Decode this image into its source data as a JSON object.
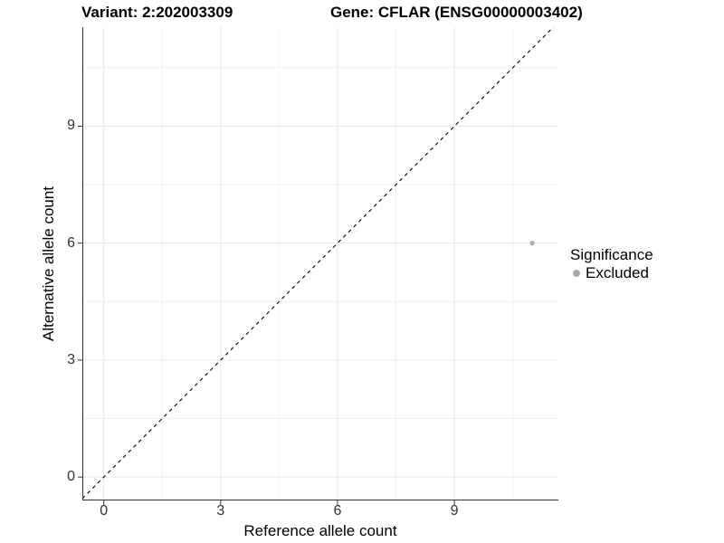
{
  "chart_data": {
    "type": "scatter",
    "title_left": "Variant: 2:202003309",
    "title_right": "Gene: CFLAR (ENSG00000003402)",
    "xlabel": "Reference allele count",
    "ylabel": "Alternative allele count",
    "x_ticks": [
      0,
      3,
      6,
      9
    ],
    "y_ticks": [
      0,
      3,
      6,
      9
    ],
    "x_minor_ticks": [
      1.5,
      4.5,
      7.5,
      10.5
    ],
    "y_minor_ticks": [
      1.5,
      4.5,
      7.5,
      10.5
    ],
    "xlim": [
      -0.55,
      11.67
    ],
    "ylim": [
      -0.6,
      11.54
    ],
    "grid": "major+minor",
    "legend_position": "right",
    "reference_line": {
      "slope": 1,
      "intercept": 0,
      "style": "dashed",
      "color": "#000000"
    },
    "series": [
      {
        "name": "Excluded",
        "color": "#b0b0b0",
        "points": [
          {
            "x": 11,
            "y": 6
          }
        ]
      }
    ],
    "legend": {
      "title": "Significance",
      "entries": [
        {
          "label": "Excluded",
          "color": "#aaaaaa"
        }
      ]
    },
    "style": {
      "background": "#ffffff",
      "major_grid_color": "#e6e6e6",
      "minor_grid_color": "#f1f1f1",
      "axis_color": "#333333",
      "tick_color": "#333333",
      "point_radius": 2.7
    }
  }
}
